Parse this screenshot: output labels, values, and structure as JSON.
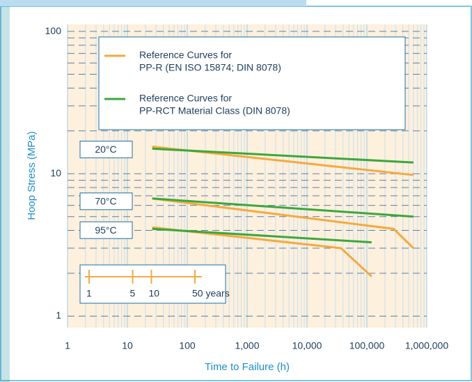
{
  "chart_data": {
    "type": "line",
    "xlabel": "Time to Failure (h)",
    "ylabel": "Hoop Stress (MPa)",
    "log_x": true,
    "log_y": true,
    "grid": true,
    "xlim": [
      1,
      1000000
    ],
    "xticks": [
      1,
      10,
      100,
      {
        "value": 1000,
        "label": "1,000"
      },
      {
        "value": 10000,
        "label": "10,000"
      },
      {
        "value": 100000,
        "label": "100,000"
      },
      {
        "value": 1000000,
        "label": "1,000,000"
      }
    ],
    "ylim": [
      0.83,
      112
    ],
    "yticks": [
      1,
      10,
      100
    ],
    "legend": [
      {
        "lines": [
          "Reference Curves for",
          "PP-R (EN ISO 15874; DIN 8078)"
        ],
        "color": "#f5a93e"
      },
      {
        "lines": [
          "Reference Curves for",
          "PP-RCT Material Class (DIN 8078)"
        ],
        "color": "#3aa83a"
      }
    ],
    "groups": [
      {
        "label": "20°C",
        "curves": [
          {
            "color": "#f5a93e",
            "x": [
              26,
              600000
            ],
            "values": [
              15.5,
              9.8
            ]
          },
          {
            "color": "#3aa83a",
            "x": [
              26,
              600000
            ],
            "values": [
              15,
              12
            ]
          }
        ]
      },
      {
        "label": "70°C",
        "curves": [
          {
            "color": "#f5a93e",
            "x": [
              26,
              280000,
              600000
            ],
            "values": [
              6.7,
              4.1,
              3.0
            ]
          },
          {
            "color": "#3aa83a",
            "x": [
              26,
              600000
            ],
            "values": [
              6.7,
              5.0
            ]
          }
        ]
      },
      {
        "label": "95°C",
        "curves": [
          {
            "color": "#f5a93e",
            "x": [
              26,
              37000,
              120000
            ],
            "values": [
              4.2,
              3.0,
              1.9
            ]
          },
          {
            "color": "#3aa83a",
            "x": [
              26,
              120000
            ],
            "values": [
              4.1,
              3.3
            ]
          }
        ]
      }
    ],
    "time_scale": {
      "color": "#f5a93e",
      "ticks": [
        {
          "value": 8760,
          "label": "1"
        },
        {
          "value": 43800,
          "label": "5"
        },
        {
          "value": 87600,
          "label": "10"
        },
        {
          "value": 438000,
          "label": "50 years"
        }
      ]
    }
  }
}
